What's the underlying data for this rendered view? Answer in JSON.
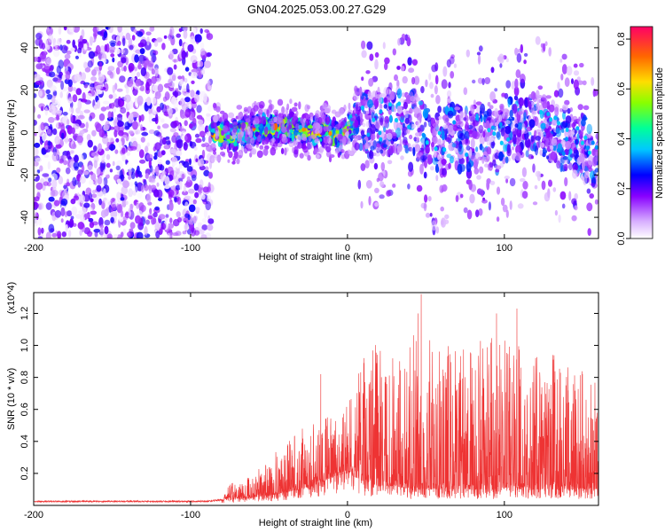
{
  "title": "GN04.2025.053.00.27.G29",
  "chart_data": [
    {
      "type": "heatmap",
      "xlabel": "Height of straight line (km)",
      "ylabel": "Frequency (Hz)",
      "xlim": [
        -200,
        160
      ],
      "ylim": [
        -50,
        50
      ],
      "xticks": [
        -200,
        -100,
        0,
        100
      ],
      "yticks": [
        -40,
        -20,
        0,
        20,
        40
      ],
      "colorbar": {
        "label": "Normalized spectral amplitude",
        "ticks": [
          0.0,
          0.2,
          0.4,
          0.6,
          0.8
        ],
        "tick_labels": [
          "0.0",
          "0.2",
          "0.4",
          "0.6",
          "0.8"
        ],
        "range": [
          0.0,
          0.85
        ]
      },
      "regions": [
        {
          "x": [
            -200,
            -87
          ],
          "freq_spread": "full band (-50 to 50 Hz)",
          "amplitude_range": [
            0.0,
            0.25
          ]
        },
        {
          "x": [
            -87,
            5
          ],
          "freq_spread": "-10 to 10 Hz",
          "amplitude_range": [
            0.15,
            0.8
          ]
        },
        {
          "x": [
            5,
            160
          ],
          "freq_spread": "-40 to 40 Hz, mostly -15 to 15 Hz",
          "amplitude_range": [
            0.05,
            0.35
          ]
        }
      ],
      "ridge": {
        "x": [
          -95,
          -85,
          -75,
          -65,
          -55,
          -45,
          -35,
          -25,
          -15,
          -5,
          5,
          15,
          25,
          35,
          45,
          55,
          65,
          75,
          85,
          95,
          105,
          115,
          125,
          135,
          145,
          155
        ],
        "frequency": [
          0,
          0,
          -2,
          0,
          2,
          3,
          2,
          0,
          1,
          -3,
          5,
          4,
          5,
          6,
          4,
          -8,
          -2,
          -3,
          0,
          -4,
          2,
          3,
          4,
          -2,
          -3,
          -10
        ]
      }
    },
    {
      "type": "line",
      "xlabel": "Height of straight line (km)",
      "ylabel": "SNR (10 * v/v)",
      "y_multiplier": "(x10^4)",
      "xlim": [
        -200,
        160
      ],
      "ylim": [
        0,
        1.33
      ],
      "xticks": [
        -200,
        -100,
        0,
        100
      ],
      "yticks": [
        0.2,
        0.4,
        0.6,
        0.8,
        1.0,
        1.2
      ],
      "ytick_labels": [
        "0.2",
        "0.4",
        "0.6",
        "0.8",
        "1.0",
        "1.2"
      ],
      "color": "#ee3333",
      "series": [
        {
          "name": "",
          "x": [
            -200,
            -180,
            -160,
            -140,
            -120,
            -100,
            -90,
            -80,
            -75,
            -70,
            -60,
            -50,
            -40,
            -30,
            -20,
            -10,
            0,
            10,
            20,
            30,
            40,
            50,
            60,
            70,
            80,
            90,
            100,
            110,
            120,
            130,
            140,
            150,
            160
          ],
          "baseline": [
            0.02,
            0.02,
            0.02,
            0.02,
            0.02,
            0.02,
            0.02,
            0.03,
            0.05,
            0.04,
            0.05,
            0.06,
            0.08,
            0.1,
            0.13,
            0.17,
            0.2,
            0.15,
            0.12,
            0.12,
            0.1,
            0.1,
            0.1,
            0.1,
            0.1,
            0.1,
            0.1,
            0.1,
            0.1,
            0.1,
            0.1,
            0.1,
            0.1
          ],
          "envelope": [
            0.03,
            0.03,
            0.03,
            0.03,
            0.03,
            0.03,
            0.03,
            0.04,
            0.16,
            0.12,
            0.22,
            0.3,
            0.38,
            0.48,
            0.55,
            0.55,
            0.65,
            0.95,
            1.05,
            1.0,
            1.12,
            1.15,
            0.95,
            1.1,
            1.05,
            1.15,
            1.1,
            1.0,
            0.95,
            0.95,
            1.0,
            0.85,
            0.75
          ],
          "peaks": [
            {
              "x": -17,
              "y": 0.82
            },
            {
              "x": 47,
              "y": 1.32
            },
            {
              "x": 45,
              "y": 1.2
            },
            {
              "x": 95,
              "y": 1.2
            },
            {
              "x": 108,
              "y": 1.23
            }
          ]
        }
      ]
    }
  ]
}
